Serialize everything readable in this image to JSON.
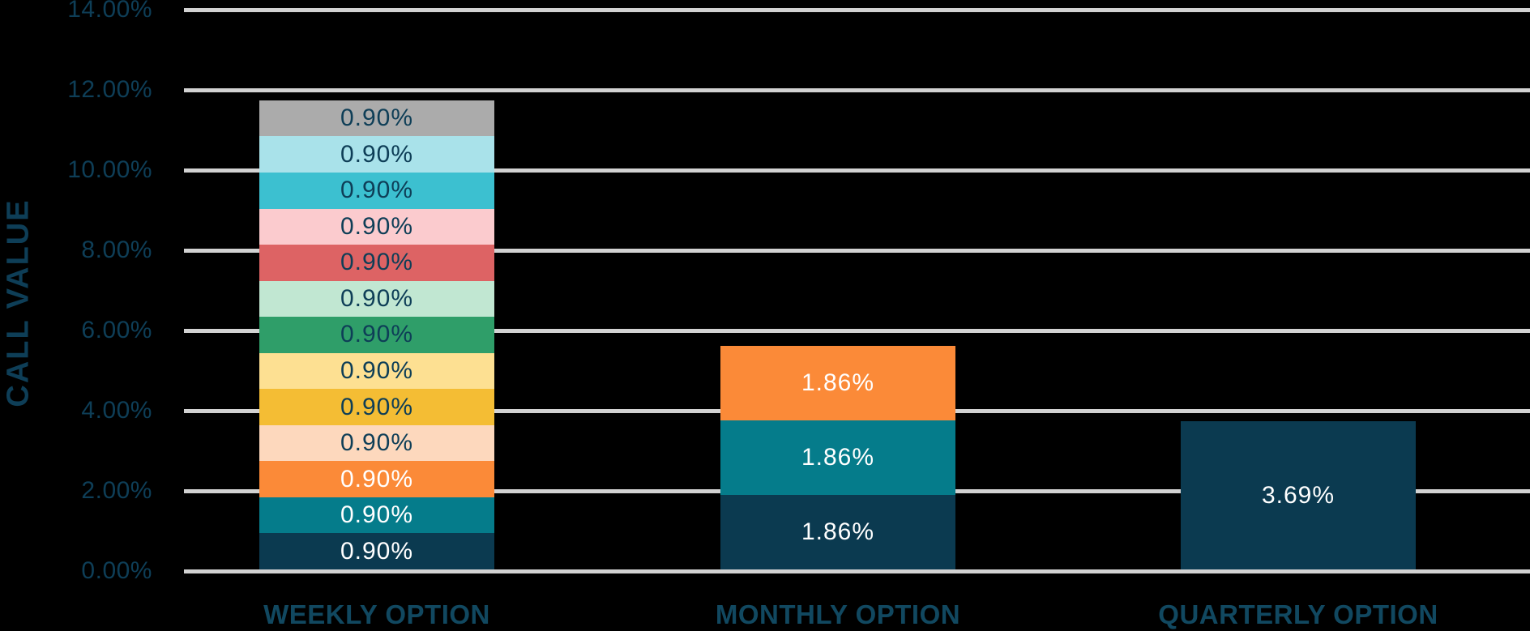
{
  "chart_data": {
    "type": "bar",
    "stacked": true,
    "title": "",
    "xlabel": "",
    "ylabel": "CALL VALUE",
    "ylim": [
      0,
      14
    ],
    "grid": true,
    "legend": false,
    "background_color": "#000000",
    "gridline_color": "#d2d2d2",
    "axis_text_color": "#0e3e57",
    "category_text_color": "#114860",
    "ytick_values": [
      0,
      2,
      4,
      6,
      8,
      10,
      12,
      14
    ],
    "ytick_labels": [
      "0.00%",
      "2.00%",
      "4.00%",
      "6.00%",
      "8.00%",
      "10.00%",
      "12.00%",
      "14.00%"
    ],
    "categories": [
      "WEEKLY OPTION",
      "MONTHLY OPTION",
      "QUARTERLY OPTION"
    ],
    "bars": [
      {
        "category": "WEEKLY OPTION",
        "total_pct": 11.7,
        "segments": [
          {
            "value": 0.9,
            "label": "0.90%",
            "color": "#0b3a50",
            "label_color": "#ffffff"
          },
          {
            "value": 0.9,
            "label": "0.90%",
            "color": "#057c8b",
            "label_color": "#ffffff"
          },
          {
            "value": 0.9,
            "label": "0.90%",
            "color": "#fb8a38",
            "label_color": "#ffffff"
          },
          {
            "value": 0.9,
            "label": "0.90%",
            "color": "#fdd8bd",
            "label_color": "#0e3e57"
          },
          {
            "value": 0.9,
            "label": "0.90%",
            "color": "#f4bd34",
            "label_color": "#0e3e57"
          },
          {
            "value": 0.9,
            "label": "0.90%",
            "color": "#fde092",
            "label_color": "#0e3e57"
          },
          {
            "value": 0.9,
            "label": "0.90%",
            "color": "#2f9e69",
            "label_color": "#0e3e57"
          },
          {
            "value": 0.9,
            "label": "0.90%",
            "color": "#c1e7d2",
            "label_color": "#0e3e57"
          },
          {
            "value": 0.9,
            "label": "0.90%",
            "color": "#dd6364",
            "label_color": "#0e3e57"
          },
          {
            "value": 0.9,
            "label": "0.90%",
            "color": "#fbcbce",
            "label_color": "#0e3e57"
          },
          {
            "value": 0.9,
            "label": "0.90%",
            "color": "#3cc0d0",
            "label_color": "#0e3e57"
          },
          {
            "value": 0.9,
            "label": "0.90%",
            "color": "#a9e2ea",
            "label_color": "#0e3e57"
          },
          {
            "value": 0.9,
            "label": "0.90%",
            "color": "#ababab",
            "label_color": "#0e3e57"
          }
        ]
      },
      {
        "category": "MONTHLY OPTION",
        "total_pct": 5.58,
        "segments": [
          {
            "value": 1.86,
            "label": "1.86%",
            "color": "#0b3a50",
            "label_color": "#ffffff"
          },
          {
            "value": 1.86,
            "label": "1.86%",
            "color": "#057c8b",
            "label_color": "#ffffff"
          },
          {
            "value": 1.86,
            "label": "1.86%",
            "color": "#fb8a38",
            "label_color": "#ffffff"
          }
        ]
      },
      {
        "category": "QUARTERLY OPTION",
        "total_pct": 3.69,
        "segments": [
          {
            "value": 3.69,
            "label": "3.69%",
            "color": "#0b3a50",
            "label_color": "#ffffff"
          }
        ]
      }
    ]
  }
}
